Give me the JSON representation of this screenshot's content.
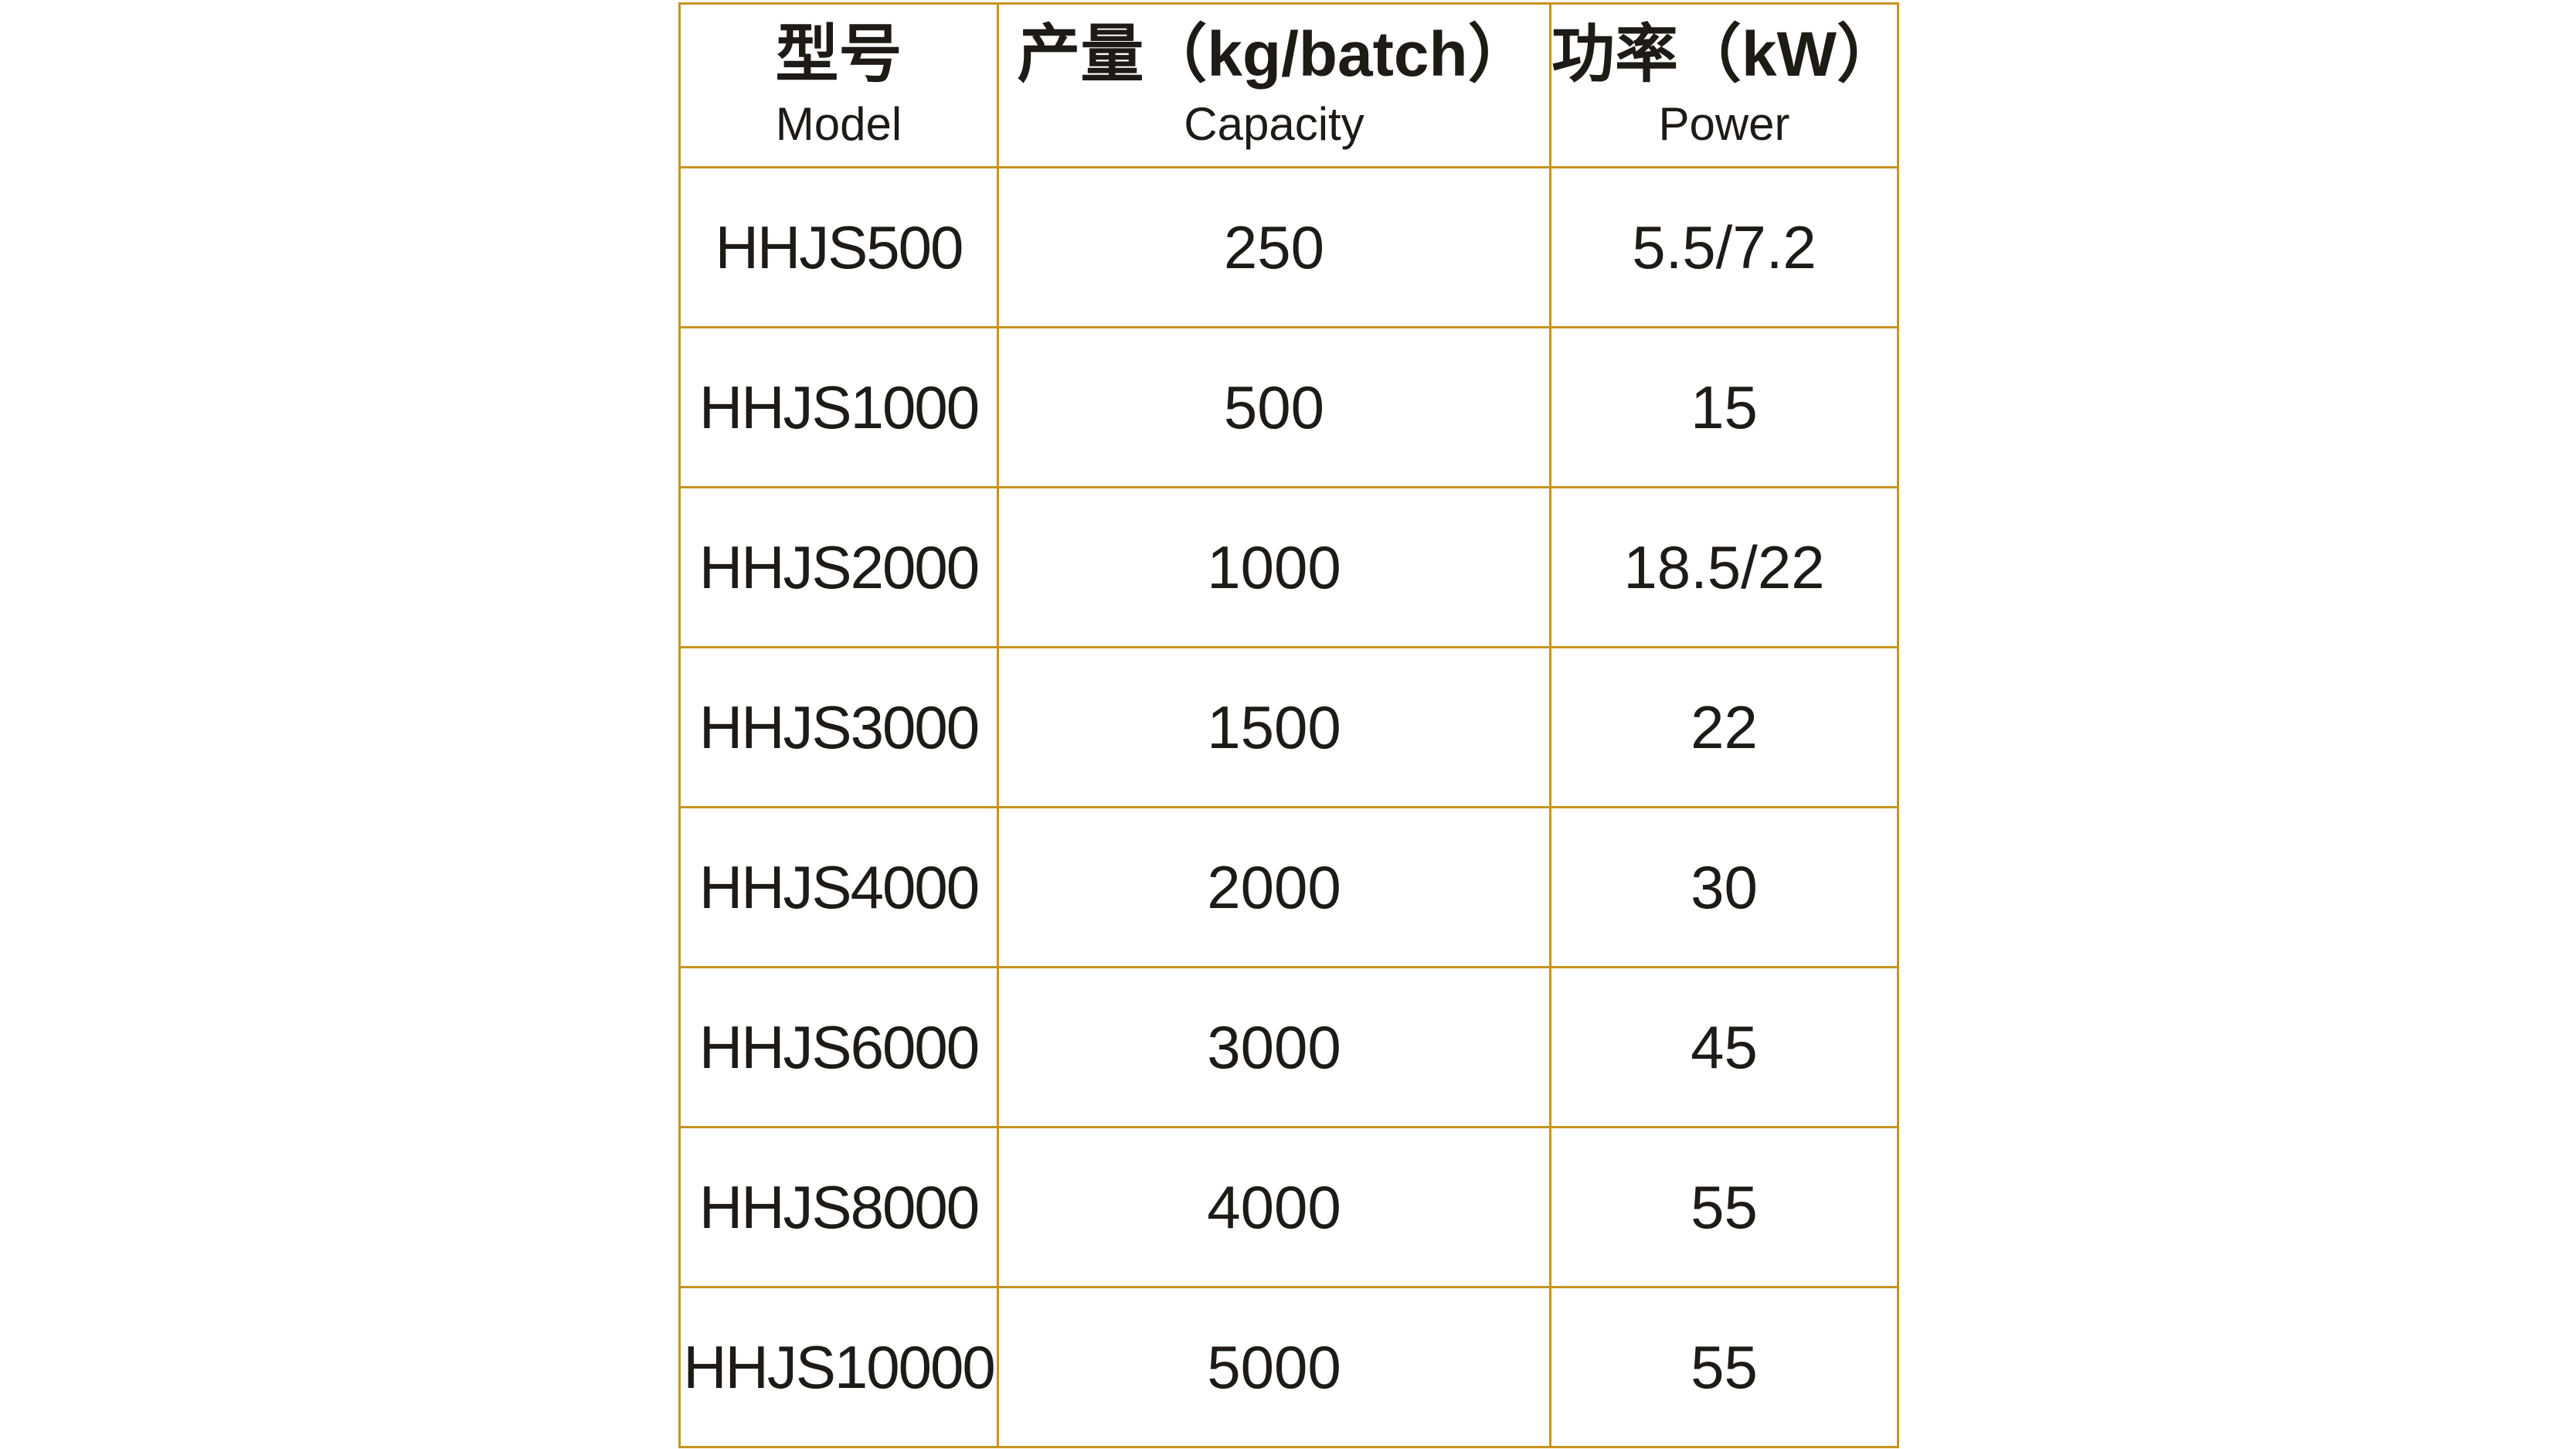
{
  "colors": {
    "border": "#C6941E",
    "text": "#1E1A16",
    "background": "#FFFFFF"
  },
  "table": {
    "columns": {
      "model": {
        "label_cn": "型号",
        "label_en": "Model"
      },
      "capacity": {
        "label_cn": "产量（kg/batch）",
        "label_en": "Capacity"
      },
      "power": {
        "label_cn": "功率（kW）",
        "label_en": "Power"
      }
    },
    "rows": [
      {
        "model": "HHJS500",
        "capacity": "250",
        "power": "5.5/7.2"
      },
      {
        "model": "HHJS1000",
        "capacity": "500",
        "power": "15"
      },
      {
        "model": "HHJS2000",
        "capacity": "1000",
        "power": "18.5/22"
      },
      {
        "model": "HHJS3000",
        "capacity": "1500",
        "power": "22"
      },
      {
        "model": "HHJS4000",
        "capacity": "2000",
        "power": "30"
      },
      {
        "model": "HHJS6000",
        "capacity": "3000",
        "power": "45"
      },
      {
        "model": "HHJS8000",
        "capacity": "4000",
        "power": "55"
      },
      {
        "model": "HHJS10000",
        "capacity": "5000",
        "power": "55"
      }
    ]
  },
  "chart_data": {
    "type": "table",
    "title": "",
    "columns": [
      "型号 Model",
      "产量（kg/batch） Capacity",
      "功率（kW） Power"
    ],
    "rows": [
      [
        "HHJS500",
        "250",
        "5.5/7.2"
      ],
      [
        "HHJS1000",
        "500",
        "15"
      ],
      [
        "HHJS2000",
        "1000",
        "18.5/22"
      ],
      [
        "HHJS3000",
        "1500",
        "22"
      ],
      [
        "HHJS4000",
        "2000",
        "30"
      ],
      [
        "HHJS6000",
        "3000",
        "45"
      ],
      [
        "HHJS8000",
        "4000",
        "55"
      ],
      [
        "HHJS10000",
        "5000",
        "55"
      ]
    ]
  }
}
